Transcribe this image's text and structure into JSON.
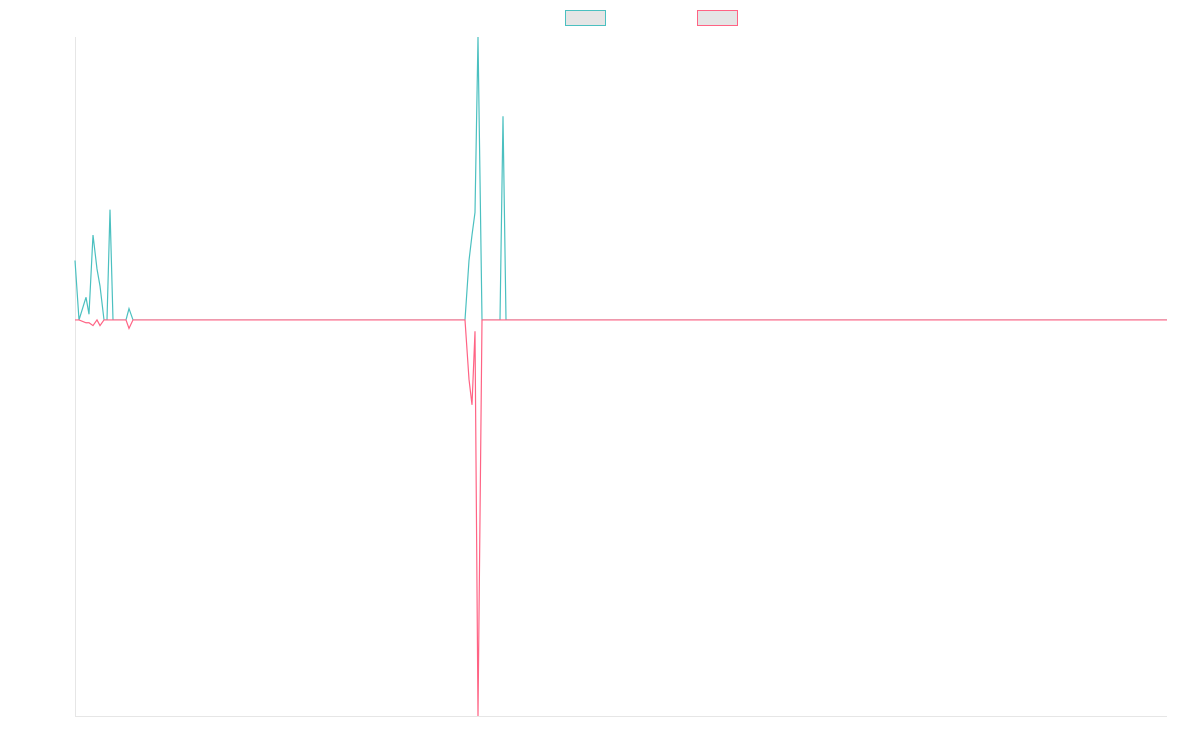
{
  "chart_data": {
    "type": "line",
    "x": [
      0,
      4,
      11,
      14,
      18,
      22,
      25,
      29,
      32,
      35,
      38,
      51,
      54,
      58,
      390,
      394,
      397,
      400,
      403,
      407,
      424,
      425,
      428,
      431,
      1092
    ],
    "series": [
      {
        "color": "#4bc0c0",
        "values": [
          0.21,
          0,
          0.08,
          0.02,
          0.3,
          0.18,
          0.12,
          0,
          0,
          0.39,
          0,
          0,
          0.04,
          0,
          0,
          0.21,
          0.3,
          0.38,
          1,
          0,
          0,
          0,
          0.72,
          0,
          0
        ]
      },
      {
        "color": "#ff6384",
        "values": [
          0,
          0,
          -0.01,
          -0.01,
          -0.02,
          0,
          -0.02,
          0,
          0,
          0,
          0,
          0,
          -0.03,
          0,
          0,
          -0.21,
          -0.3,
          -0.04,
          -1.4,
          0,
          0,
          0,
          0,
          0,
          0
        ]
      }
    ],
    "xlim": [
      0,
      1092
    ],
    "ylim": [
      -1.4,
      1
    ],
    "legend": "top"
  }
}
